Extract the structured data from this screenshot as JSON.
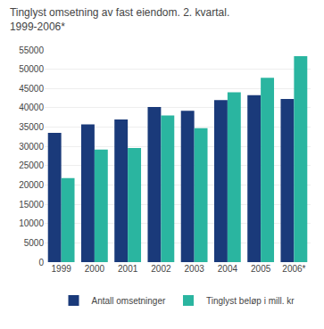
{
  "chart_data": {
    "type": "bar",
    "title": "Tinglyst omsetning av fast eiendom. 2. kvartal.\n1999-2006*",
    "categories": [
      "1999",
      "2000",
      "2001",
      "2002",
      "2003",
      "2004",
      "2005",
      "2006*"
    ],
    "series": [
      {
        "name": "Antall omsetninger",
        "color": "#1a3a7a",
        "values": [
          33500,
          35700,
          37000,
          40200,
          39200,
          42000,
          43300,
          42300
        ]
      },
      {
        "name": "Tinglyst beløp i mill. kr",
        "color": "#2ab5a0",
        "values": [
          21800,
          29200,
          29600,
          38000,
          34700,
          44000,
          47800,
          53400
        ]
      }
    ],
    "ylim": [
      0,
      55000
    ],
    "yticks": [
      0,
      5000,
      10000,
      15000,
      20000,
      25000,
      30000,
      35000,
      40000,
      45000,
      50000,
      55000
    ],
    "grid": true,
    "legend": "bottom"
  }
}
